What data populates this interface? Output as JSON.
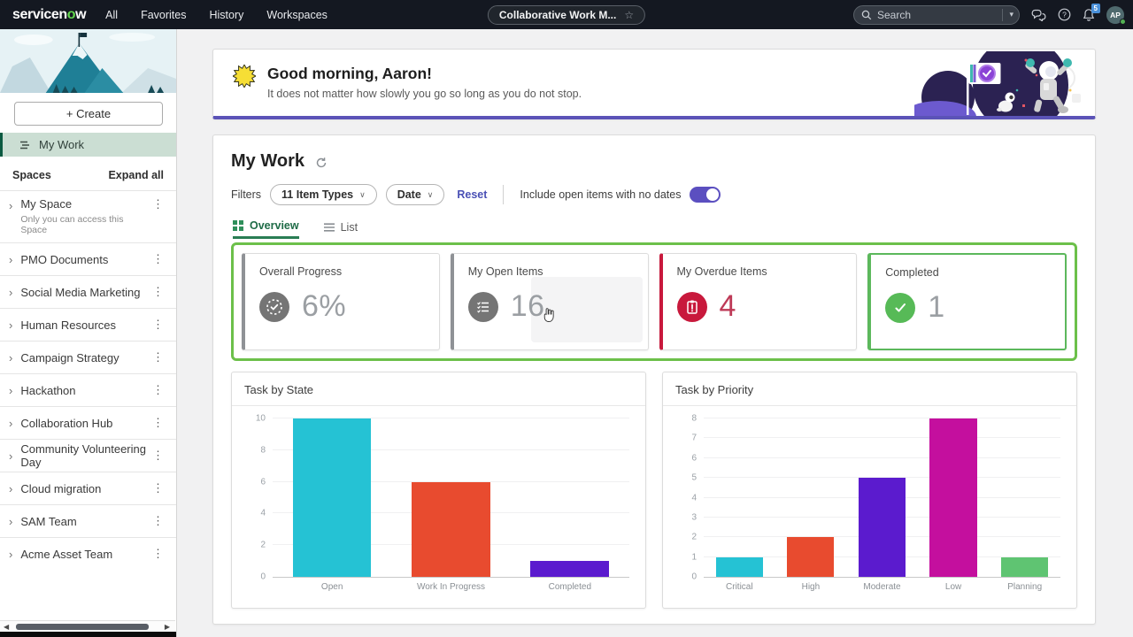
{
  "topnav": {
    "logo_text_left": "servicen",
    "logo_text_green": "o",
    "logo_text_right": "w",
    "links": [
      "All",
      "Favorites",
      "History",
      "Workspaces"
    ],
    "center_tab": "Collaborative Work M...",
    "search_placeholder": "Search",
    "notification_count": "5",
    "avatar_initials": "AP"
  },
  "sidebar": {
    "create_label": "+ Create",
    "my_work_label": "My Work",
    "spaces_header": "Spaces",
    "expand_all_label": "Expand all",
    "spaces": [
      {
        "label": "My Space",
        "subtitle": "Only you can access this Space"
      },
      {
        "label": "PMO Documents"
      },
      {
        "label": "Social Media Marketing"
      },
      {
        "label": "Human Resources"
      },
      {
        "label": "Campaign Strategy"
      },
      {
        "label": "Hackathon"
      },
      {
        "label": "Collaboration Hub"
      },
      {
        "label": "Community Volunteering Day"
      },
      {
        "label": "Cloud migration"
      },
      {
        "label": "SAM Team"
      },
      {
        "label": "Acme Asset Team"
      }
    ]
  },
  "banner": {
    "greeting": "Good morning, Aaron!",
    "quote": "It does not matter how slowly you go so long as you do not stop."
  },
  "main": {
    "title": "My Work",
    "filters": {
      "label": "Filters",
      "pills": [
        {
          "label": "11 Item Types"
        },
        {
          "label": "Date"
        }
      ],
      "reset_label": "Reset",
      "toggle_label": "Include open items with no dates",
      "toggle_on": true
    },
    "tabs": [
      {
        "label": "Overview",
        "active": true,
        "icon": "grid-icon"
      },
      {
        "label": "List",
        "active": false,
        "icon": "list-icon"
      }
    ],
    "kpis": [
      {
        "label": "Overall Progress",
        "value": "6%",
        "icon": "progress-ring-check-icon",
        "icon_bg": "#757575",
        "accent": "#8F9296",
        "value_color": "#9B9FA3"
      },
      {
        "label": "My Open Items",
        "value": "16",
        "icon": "checklist-icon",
        "icon_bg": "#757575",
        "accent": "#8F9296",
        "value_color": "#9B9FA3",
        "hovered": true
      },
      {
        "label": "My Overdue Items",
        "value": "4",
        "icon": "overdue-clipboard-icon",
        "icon_bg": "#C8193C",
        "accent": "#C8193C",
        "value_color": "#BE3A57"
      },
      {
        "label": "Completed",
        "value": "1",
        "icon": "check-circle-icon",
        "icon_bg": "#57BA57",
        "accent": "#5CB85C",
        "value_color": "#9B9FA3",
        "full_border": true
      }
    ]
  },
  "chart_data": [
    {
      "type": "bar",
      "title": "Task by State",
      "categories": [
        "Open",
        "Work In Progress",
        "Completed"
      ],
      "values": [
        10,
        6,
        1
      ],
      "colors": [
        "#25C2D4",
        "#E84B2F",
        "#5B1BCE"
      ],
      "xlabel": "",
      "ylabel": "",
      "ylim": [
        0,
        10
      ],
      "ytick": 2,
      "grid": true,
      "legend": "none"
    },
    {
      "type": "bar",
      "title": "Task by Priority",
      "categories": [
        "Critical",
        "High",
        "Moderate",
        "Low",
        "Planning"
      ],
      "values": [
        1,
        2,
        5,
        8,
        1
      ],
      "colors": [
        "#25C2D4",
        "#E84B2F",
        "#5B1BCE",
        "#C40F9E",
        "#5FC472"
      ],
      "xlabel": "",
      "ylabel": "",
      "ylim": [
        0,
        8
      ],
      "ytick": 1,
      "grid": true,
      "legend": "none"
    }
  ],
  "colors": {
    "topnav_bg": "#141821",
    "brand_green": "#62D84E",
    "banner_accent_purple": "#5B53B7",
    "toggle_on_purple": "#5B4FC0",
    "annotation_green": "#6CC04A",
    "selected_row_green": "#CBDED3",
    "overdue_red": "#C8193C",
    "completed_green": "#5CB85C",
    "active_tab_green": "#2A7D54"
  }
}
